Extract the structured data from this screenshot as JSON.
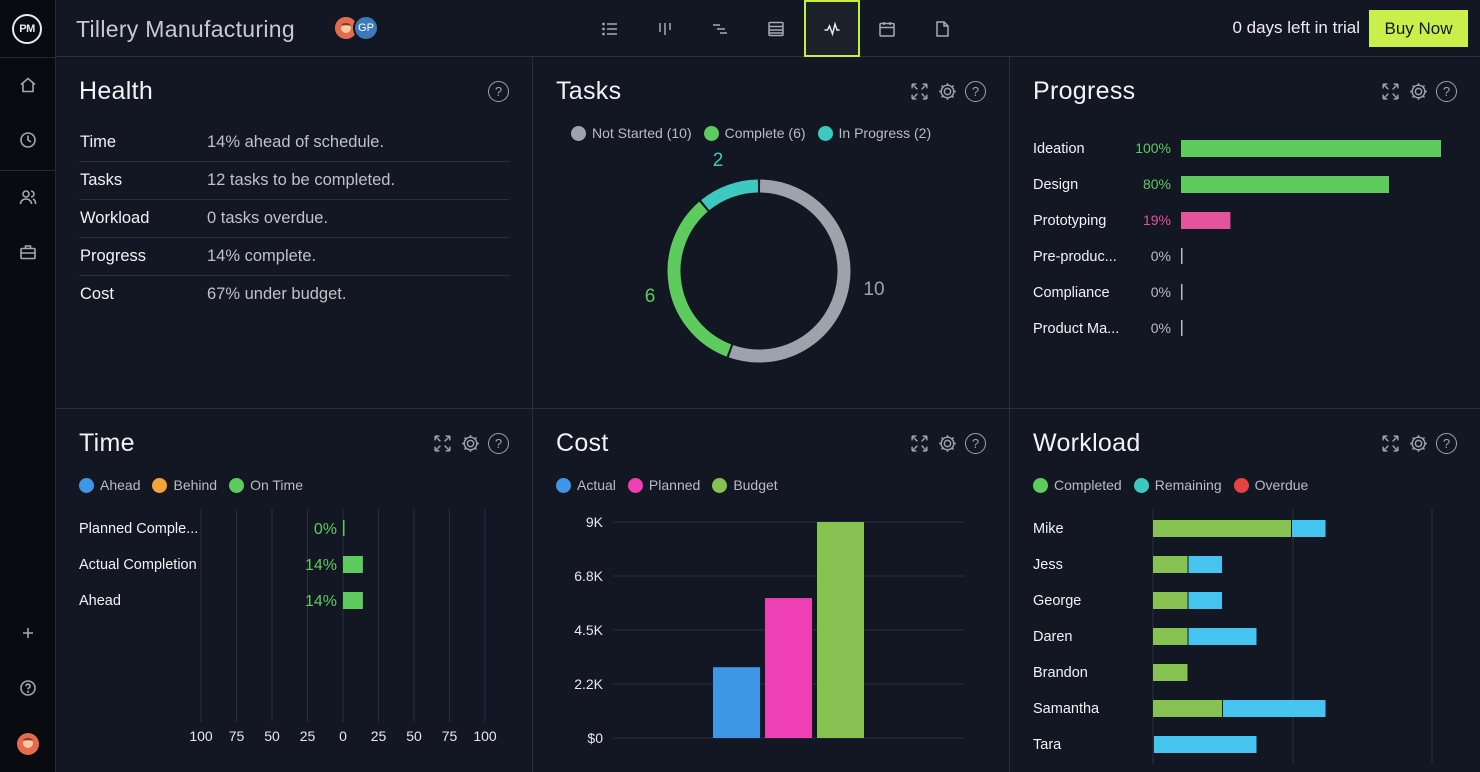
{
  "app": {
    "logo": "PM",
    "title": "Tillery Manufacturing",
    "avatar2_initials": "GP",
    "trial_text": "0 days left in trial",
    "buy_label": "Buy Now"
  },
  "colors": {
    "accent": "#c9f04a",
    "green": "#5ecb5f",
    "teal": "#3ec9c0",
    "gray": "#9ea2ad",
    "pink": "#e4539b",
    "blue": "#3f96e6",
    "orange": "#f2a33a",
    "red": "#e8423e",
    "magenta": "#ef3fb5",
    "budget": "#86c151",
    "sky": "#44c4ef"
  },
  "health": {
    "title": "Health",
    "rows": [
      {
        "label": "Time",
        "value": "14% ahead of schedule."
      },
      {
        "label": "Tasks",
        "value": "12 tasks to be completed."
      },
      {
        "label": "Workload",
        "value": "0 tasks overdue."
      },
      {
        "label": "Progress",
        "value": "14% complete."
      },
      {
        "label": "Cost",
        "value": "67% under budget."
      }
    ]
  },
  "tasks": {
    "title": "Tasks",
    "legend": [
      "Not Started (10)",
      "Complete (6)",
      "In Progress (2)"
    ],
    "labels": {
      "in_progress": "2",
      "complete": "6",
      "not_started": "10"
    }
  },
  "progress": {
    "title": "Progress",
    "rows": [
      {
        "label": "Ideation",
        "pct": "100%",
        "value": 100
      },
      {
        "label": "Design",
        "pct": "80%",
        "value": 80
      },
      {
        "label": "Prototyping",
        "pct": "19%",
        "value": 19
      },
      {
        "label": "Pre-produc...",
        "pct": "0%",
        "value": 0
      },
      {
        "label": "Compliance",
        "pct": "0%",
        "value": 0
      },
      {
        "label": "Product Ma...",
        "pct": "0%",
        "value": 0
      }
    ]
  },
  "time": {
    "title": "Time",
    "legend": [
      "Ahead",
      "Behind",
      "On Time"
    ],
    "rows": [
      {
        "label": "Planned Comple...",
        "pct": "0%",
        "value": 0
      },
      {
        "label": "Actual Completion",
        "pct": "14%",
        "value": 14
      },
      {
        "label": "Ahead",
        "pct": "14%",
        "value": 14
      }
    ],
    "ticks": [
      "100",
      "75",
      "50",
      "25",
      "0",
      "25",
      "50",
      "75",
      "100"
    ]
  },
  "cost": {
    "title": "Cost",
    "legend": [
      "Actual",
      "Planned",
      "Budget"
    ],
    "yticks": [
      "9K",
      "6.8K",
      "4.5K",
      "2.2K",
      "$0"
    ]
  },
  "workload": {
    "title": "Workload",
    "legend": [
      "Completed",
      "Remaining",
      "Overdue"
    ]
  },
  "chart_data": [
    {
      "type": "pie",
      "title": "Tasks",
      "categories": [
        "Not Started",
        "Complete",
        "In Progress"
      ],
      "values": [
        10,
        6,
        2
      ]
    },
    {
      "type": "bar",
      "title": "Cost",
      "categories": [
        "Actual",
        "Planned",
        "Budget"
      ],
      "values": [
        2950,
        5830,
        9000
      ],
      "ylim": [
        0,
        9000
      ]
    },
    {
      "type": "bar",
      "title": "Workload",
      "categories": [
        "Mike",
        "Jess",
        "George",
        "Daren",
        "Brandon",
        "Samantha",
        "Tara"
      ],
      "series": [
        {
          "name": "Completed",
          "values": [
            4,
            1,
            1,
            1,
            1,
            2,
            0
          ]
        },
        {
          "name": "Remaining",
          "values": [
            1,
            1,
            1,
            2,
            0,
            3,
            3
          ]
        },
        {
          "name": "Overdue",
          "values": [
            0,
            0,
            0,
            0,
            0,
            0,
            0
          ]
        }
      ]
    }
  ]
}
